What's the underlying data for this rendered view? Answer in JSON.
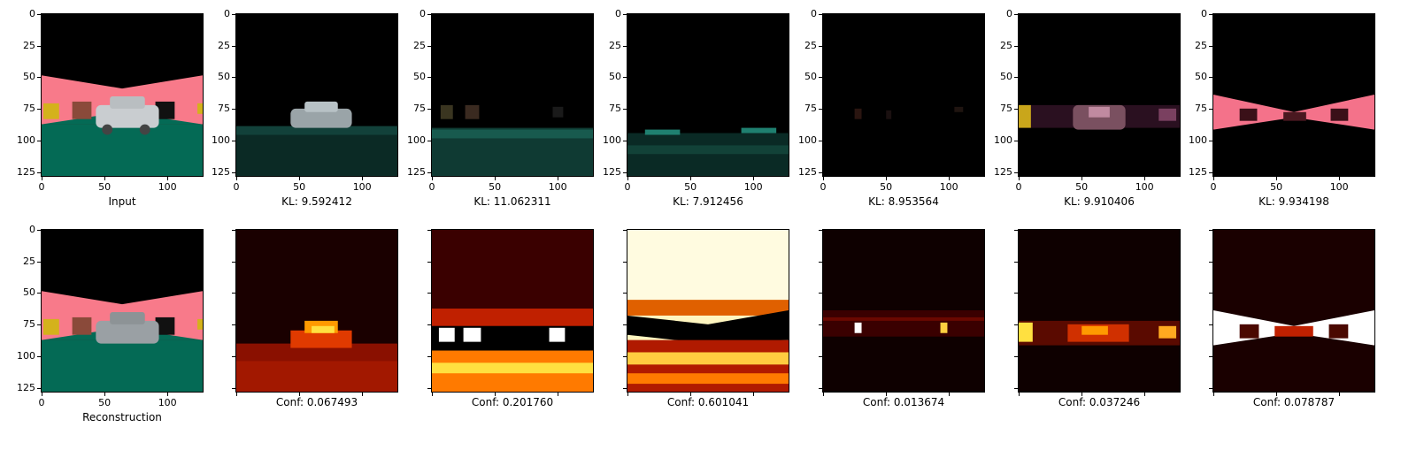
{
  "axis_ticks": [
    "0",
    "25",
    "50",
    "75",
    "100",
    "125"
  ],
  "x_ticks": [
    "0",
    "50",
    "100"
  ],
  "row1": [
    {
      "caption": "Input",
      "kind": "input"
    },
    {
      "caption": "KL: 9.592412",
      "kind": "car"
    },
    {
      "caption": "KL: 11.062311",
      "kind": "ground"
    },
    {
      "caption": "KL: 7.912456",
      "kind": "ground2"
    },
    {
      "caption": "KL: 8.953564",
      "kind": "dark"
    },
    {
      "caption": "KL: 9.910406",
      "kind": "pinkcar"
    },
    {
      "caption": "KL: 9.934198",
      "kind": "pinkband"
    }
  ],
  "row2": [
    {
      "caption": "Reconstruction",
      "kind": "recon"
    },
    {
      "caption": "Conf: 0.067493",
      "kind": "heat1"
    },
    {
      "caption": "Conf: 0.201760",
      "kind": "heat2"
    },
    {
      "caption": "Conf: 0.601041",
      "kind": "heat3"
    },
    {
      "caption": "Conf: 0.013674",
      "kind": "heat4"
    },
    {
      "caption": "Conf: 0.037246",
      "kind": "heat5"
    },
    {
      "caption": "Conf: 0.078787",
      "kind": "heat6"
    }
  ]
}
